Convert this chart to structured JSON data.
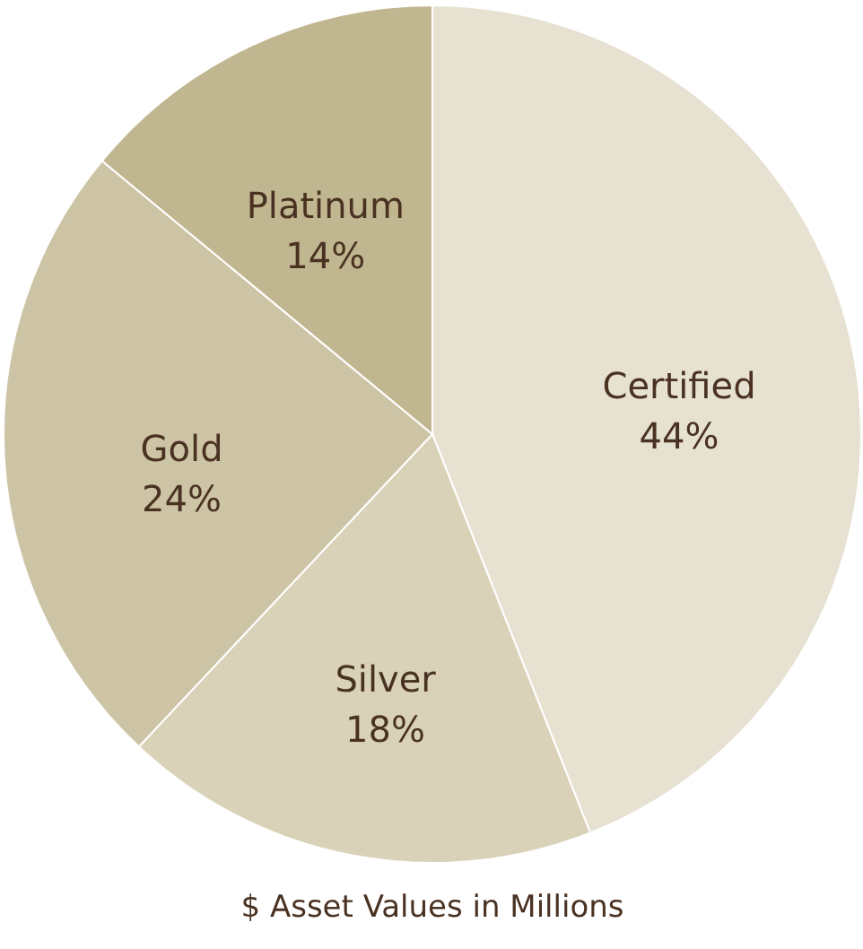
{
  "chart_data": {
    "type": "pie",
    "categories": [
      "Certified",
      "Silver",
      "Gold",
      "Platinum"
    ],
    "values": [
      44,
      18,
      24,
      14
    ],
    "colors": [
      "#e6e1d1",
      "#d9d2b8",
      "#cdc4a5",
      "#c0b68f"
    ],
    "value_labels": [
      "44%",
      "18%",
      "24%",
      "14%"
    ],
    "annotations": [
      "$ Asset Values in Millions"
    ]
  }
}
